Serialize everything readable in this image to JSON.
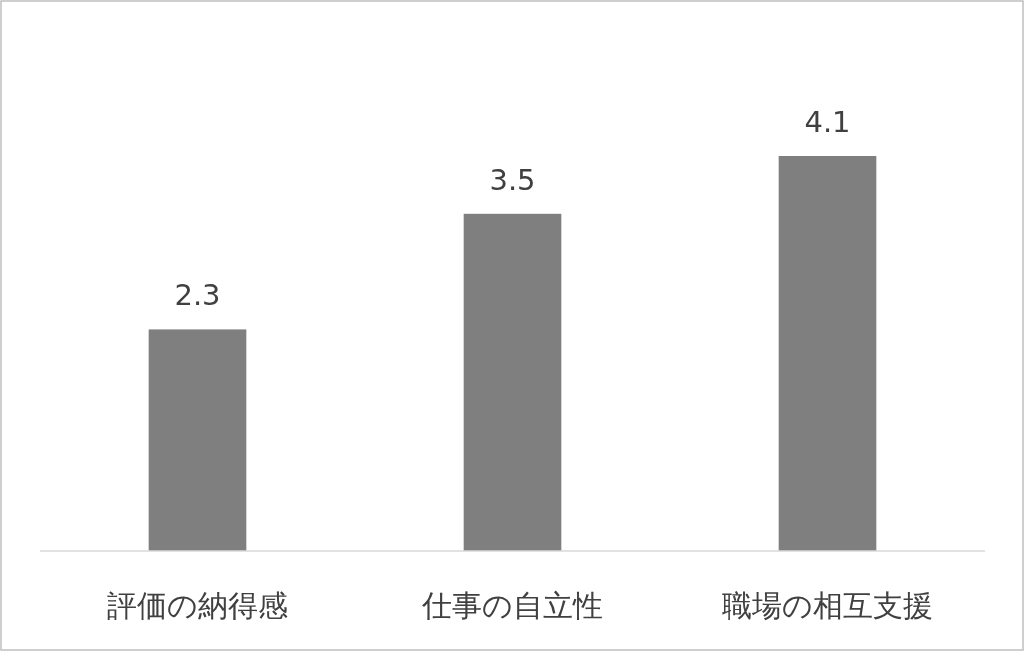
{
  "chart_data": {
    "type": "bar",
    "categories": [
      "評価の納得感",
      "仕事の自立性",
      "職場の相互支援"
    ],
    "values": [
      2.3,
      3.5,
      4.1
    ],
    "color": "#7f7f7f",
    "data_labels": true
  }
}
